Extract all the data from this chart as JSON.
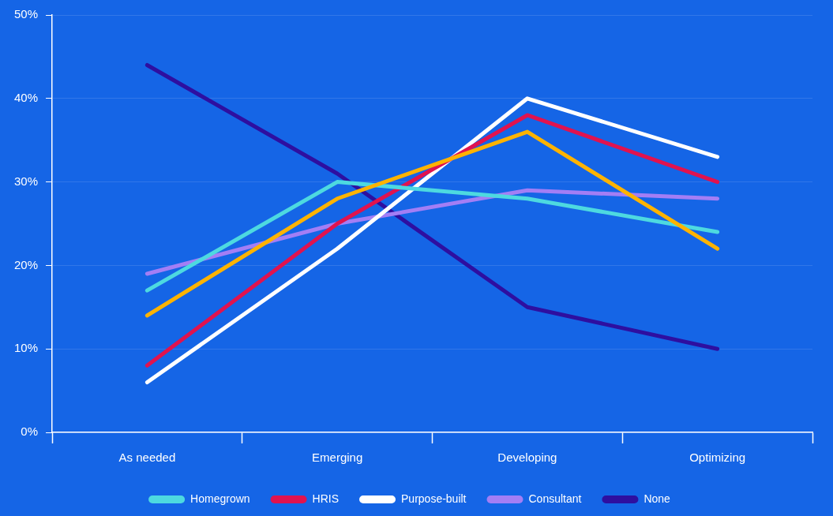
{
  "chart_data": {
    "type": "line",
    "categories": [
      "As needed",
      "Emerging",
      "Developing",
      "Optimizing"
    ],
    "series": [
      {
        "color": "#ffb300",
        "values": [
          14,
          28,
          36,
          22
        ]
      },
      {
        "name": "Homegrown",
        "color": "#4dd9e0",
        "values": [
          17,
          30,
          28,
          24
        ]
      },
      {
        "name": "HRIS",
        "color": "#e0134f",
        "values": [
          8,
          25,
          38,
          30
        ]
      },
      {
        "name": "Purpose-built",
        "color": "#ffffff",
        "values": [
          6,
          22,
          40,
          33
        ]
      },
      {
        "name": "Consultant",
        "color": "#a37ef5",
        "values": [
          19,
          25,
          29,
          28
        ]
      },
      {
        "name": "None",
        "color": "#2e0fa0",
        "values": [
          44,
          31,
          15,
          10
        ]
      }
    ],
    "ylim": [
      0,
      50
    ],
    "yticks": [
      {
        "value": 0,
        "label": "0%"
      },
      {
        "value": 10,
        "label": "10%"
      },
      {
        "value": 20,
        "label": "20%"
      },
      {
        "value": 30,
        "label": "30%"
      },
      {
        "value": 40,
        "label": "40%"
      },
      {
        "value": 50,
        "label": "50%"
      }
    ],
    "grid": "y",
    "legend": "bottom",
    "marker": "none",
    "line_style": "solid"
  }
}
